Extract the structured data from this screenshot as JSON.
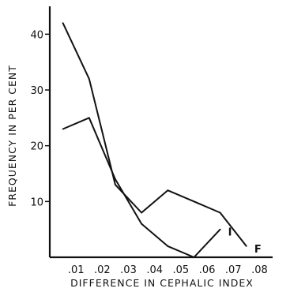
{
  "chart_data": {
    "type": "line",
    "title": "",
    "xlabel": "DIFFERENCE IN CEPHALIC INDEX",
    "ylabel": "FREQUENCY IN PER CENT",
    "xlim": [
      0,
      0.085
    ],
    "ylim": [
      0,
      45
    ],
    "x_ticks": [
      ".01",
      ".02",
      ".03",
      ".04",
      ".05",
      ".06",
      ".07",
      ".08"
    ],
    "y_ticks": [
      "10",
      "20",
      "30",
      "40"
    ],
    "grid": false,
    "series": [
      {
        "name": "I",
        "x": [
          0.005,
          0.015,
          0.025,
          0.035,
          0.045,
          0.055,
          0.065
        ],
        "values": [
          23,
          25,
          14,
          6,
          2,
          0,
          5
        ]
      },
      {
        "name": "F",
        "x": [
          0.005,
          0.015,
          0.025,
          0.035,
          0.045,
          0.055,
          0.065,
          0.075
        ],
        "values": [
          42,
          32,
          13,
          8,
          12,
          10,
          8,
          2
        ]
      }
    ]
  }
}
